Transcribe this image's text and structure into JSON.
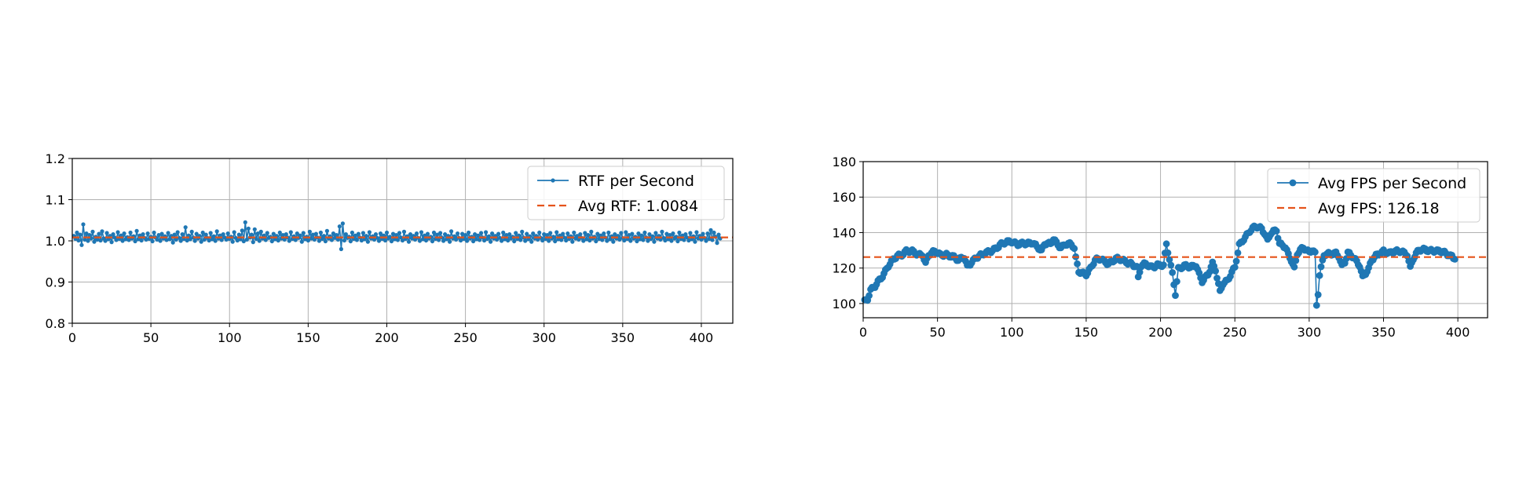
{
  "chart_data": [
    {
      "type": "line",
      "title": "",
      "xlabel": "",
      "ylabel": "",
      "xlim": [
        0,
        420
      ],
      "ylim": [
        0.8,
        1.2
      ],
      "xticks": [
        0,
        50,
        100,
        150,
        200,
        250,
        300,
        350,
        400
      ],
      "yticks": [
        0.8,
        0.9,
        1.0,
        1.1,
        1.2
      ],
      "ytick_format": "1",
      "grid": true,
      "legend_position": "upper right",
      "series": [
        {
          "name": "RTF per Second",
          "kind": "line-marker",
          "color": "#1f77b4",
          "marker_size": "small",
          "noise_note": "399 points oscillating 0.98-1.04 around 1.008",
          "x_start": 1,
          "x_end": 399,
          "values": [
            1.012,
            1.005,
            1.02,
            1.001,
            1.015,
            0.99,
            1.04,
            1.003,
            1.018,
            1.0,
            1.014,
            1.006,
            1.022,
            0.998,
            1.01,
            1.003,
            1.017,
            1.001,
            1.023,
            1.006,
            1.0,
            1.019,
            1.004,
            1.012,
            0.997,
            1.016,
            1.008,
            1.002,
            1.021,
            1.005,
            1.013,
            1.0,
            1.018,
            1.004,
            1.009,
            1.002,
            1.02,
            1.006,
            1.011,
            0.999,
            1.024,
            1.004,
            1.013,
            1.001,
            1.016,
            1.007,
            1.003,
            1.018,
            1.005,
            1.01,
            0.999,
            1.02,
            1.008,
            1.003,
            1.014,
            1.0,
            1.017,
            1.006,
            1.011,
            1.002,
            1.019,
            1.004,
            1.012,
            0.996,
            1.015,
            1.003,
            1.021,
            1.007,
            1.0,
            1.016,
            1.005,
            1.033,
            1.001,
            1.013,
            1.004,
            1.022,
            1.008,
            1.0,
            1.017,
            1.006,
            1.012,
            0.998,
            1.02,
            1.003,
            1.015,
            1.007,
            1.001,
            1.019,
            1.004,
            1.011,
            1.0,
            1.023,
            1.006,
            1.013,
            1.002,
            1.016,
            1.008,
            1.003,
            1.018,
            1.005,
            1.01,
            0.998,
            1.021,
            1.007,
            1.001,
            1.015,
            1.004,
            1.025,
            0.999,
            1.045,
            1.003,
            1.03,
            1.008,
            1.015,
            0.997,
            1.028,
            1.005,
            1.018,
            1.0,
            1.022,
            1.006,
            1.013,
            1.002,
            1.019,
            1.007,
            1.01,
            0.999,
            1.017,
            1.004,
            1.012,
            1.001,
            1.02,
            1.006,
            1.014,
            1.003,
            1.016,
            1.008,
            1.0,
            1.021,
            1.005,
            1.011,
            1.002,
            1.018,
            1.007,
            1.013,
            0.998,
            1.019,
            1.004,
            1.01,
            1.001,
            1.022,
            1.006,
            1.015,
            1.003,
            1.017,
            1.008,
            1.0,
            1.02,
            1.005,
            1.012,
            0.999,
            1.024,
            1.006,
            1.011,
            1.002,
            1.018,
            1.007,
            1.014,
            1.003,
            1.035,
            0.98,
            1.042,
            1.001,
            1.016,
            1.007,
            1.01,
            0.999,
            1.02,
            1.005,
            1.013,
            1.002,
            1.017,
            1.008,
            1.001,
            1.019,
            1.004,
            1.012,
            0.998,
            1.021,
            1.006,
            1.011,
            1.003,
            1.016,
            1.007,
            1.0,
            1.018,
            1.005,
            1.013,
            1.001,
            1.02,
            1.006,
            1.01,
            0.999,
            1.017,
            1.004,
            1.014,
            1.002,
            1.019,
            1.008,
            1.001,
            1.022,
            1.005,
            1.011,
            0.998,
            1.016,
            1.006,
            1.012,
            1.003,
            1.018,
            1.007,
            1.0,
            1.021,
            1.004,
            1.013,
            1.001,
            1.017,
            1.006,
            1.01,
            0.999,
            1.02,
            1.005,
            1.015,
            1.002,
            1.019,
            1.008,
            1.0,
            1.016,
            1.004,
            1.012,
            0.998,
            1.023,
            1.006,
            1.011,
            1.003,
            1.018,
            1.007,
            1.001,
            1.017,
            1.005,
            1.014,
            1.0,
            1.02,
            1.006,
            1.01,
            0.999,
            1.016,
            1.004,
            1.013,
            1.002,
            1.019,
            1.008,
            1.001,
            1.021,
            1.005,
            1.011,
            0.998,
            1.018,
            1.006,
            1.012,
            1.003,
            1.017,
            1.007,
            1.0,
            1.02,
            1.004,
            1.014,
            1.001,
            1.016,
            1.006,
            1.01,
            0.999,
            1.019,
            1.005,
            1.013,
            1.002,
            1.022,
            1.008,
            1.0,
            1.017,
            1.004,
            1.011,
            0.998,
            1.018,
            1.006,
            1.012,
            1.003,
            1.02,
            1.007,
            1.001,
            1.016,
            1.005,
            1.014,
            1.0,
            1.019,
            1.006,
            1.01,
            0.999,
            1.021,
            1.004,
            1.013,
            1.002,
            1.017,
            1.008,
            1.001,
            1.018,
            1.005,
            1.011,
            0.998,
            1.02,
            1.006,
            1.012,
            1.003,
            1.016,
            1.007,
            1.0,
            1.019,
            1.004,
            1.014,
            1.001,
            1.022,
            1.006,
            1.01,
            0.999,
            1.017,
            1.005,
            1.013,
            1.002,
            1.018,
            1.008,
            1.0,
            1.02,
            1.004,
            1.011,
            0.998,
            1.016,
            1.006,
            1.012,
            1.003,
            1.019,
            1.007,
            1.001,
            1.021,
            1.005,
            1.014,
            1.0,
            1.017,
            1.006,
            1.01,
            0.999,
            1.018,
            1.004,
            1.013,
            1.002,
            1.02,
            1.008,
            1.0,
            1.016,
            1.005,
            1.011,
            0.998,
            1.019,
            1.006,
            1.012,
            1.003,
            1.022,
            1.007,
            1.001,
            1.017,
            1.004,
            1.014,
            1.0,
            1.018,
            1.006,
            1.01,
            0.999,
            1.02,
            1.005,
            1.013,
            1.002,
            1.016,
            1.008,
            1.001,
            1.019,
            1.004,
            1.011,
            0.998,
            1.021,
            1.006,
            1.012,
            1.003,
            1.017,
            1.007,
            1.0,
            1.018,
            1.005,
            1.026,
            1.002,
            1.02,
            1.01,
            0.995,
            1.015,
            1.006
          ]
        },
        {
          "name": "Avg RTF: 1.0084",
          "kind": "hline",
          "color": "#e5531a",
          "y": 1.0084
        }
      ]
    },
    {
      "type": "line",
      "title": "",
      "xlabel": "",
      "ylabel": "",
      "xlim": [
        0,
        420
      ],
      "ylim": [
        92,
        180
      ],
      "xticks": [
        0,
        50,
        100,
        150,
        200,
        250,
        300,
        350,
        400
      ],
      "yticks": [
        100,
        120,
        140,
        160,
        180
      ],
      "ytick_format": "0",
      "grid": true,
      "legend_position": "upper right",
      "series": [
        {
          "name": "Avg FPS per Second",
          "kind": "line-marker",
          "color": "#1f77b4",
          "marker_size": "large",
          "x_start": 1,
          "x_end": 399,
          "anchors": [
            [
              1,
              101
            ],
            [
              3,
              102
            ],
            [
              5,
              107
            ],
            [
              8,
              110
            ],
            [
              11,
              114
            ],
            [
              14,
              117
            ],
            [
              17,
              121
            ],
            [
              20,
              124
            ],
            [
              23,
              127
            ],
            [
              26,
              128
            ],
            [
              29,
              130
            ],
            [
              33,
              129
            ],
            [
              37,
              127
            ],
            [
              40,
              128
            ],
            [
              42,
              123
            ],
            [
              44,
              128
            ],
            [
              48,
              129
            ],
            [
              52,
              127
            ],
            [
              56,
              128
            ],
            [
              60,
              127
            ],
            [
              64,
              124
            ],
            [
              68,
              126
            ],
            [
              70,
              121
            ],
            [
              73,
              124
            ],
            [
              76,
              126
            ],
            [
              80,
              127
            ],
            [
              84,
              129
            ],
            [
              88,
              131
            ],
            [
              92,
              133
            ],
            [
              96,
              134
            ],
            [
              100,
              135
            ],
            [
              104,
              134
            ],
            [
              108,
              134
            ],
            [
              110,
              133
            ],
            [
              114,
              134
            ],
            [
              118,
              132
            ],
            [
              120,
              130
            ],
            [
              122,
              134
            ],
            [
              126,
              133
            ],
            [
              128,
              136
            ],
            [
              130,
              134
            ],
            [
              133,
              132
            ],
            [
              136,
              134
            ],
            [
              140,
              133
            ],
            [
              142,
              131
            ],
            [
              143,
              125
            ],
            [
              145,
              118
            ],
            [
              150,
              117
            ],
            [
              153,
              120
            ],
            [
              156,
              124
            ],
            [
              160,
              125
            ],
            [
              165,
              123
            ],
            [
              170,
              125
            ],
            [
              175,
              124
            ],
            [
              180,
              123
            ],
            [
              184,
              121
            ],
            [
              185,
              114
            ],
            [
              187,
              121
            ],
            [
              190,
              122
            ],
            [
              194,
              121
            ],
            [
              198,
              122
            ],
            [
              202,
              121
            ],
            [
              204,
              133
            ],
            [
              206,
              125
            ],
            [
              208,
              117
            ],
            [
              210,
              106
            ],
            [
              212,
              120
            ],
            [
              216,
              121
            ],
            [
              220,
              120
            ],
            [
              224,
              122
            ],
            [
              226,
              117
            ],
            [
              228,
              113
            ],
            [
              232,
              116
            ],
            [
              235,
              122
            ],
            [
              237,
              119
            ],
            [
              240,
              107
            ],
            [
              242,
              112
            ],
            [
              245,
              113
            ],
            [
              248,
              117
            ],
            [
              250,
              120
            ],
            [
              253,
              133
            ],
            [
              256,
              137
            ],
            [
              260,
              141
            ],
            [
              264,
              143
            ],
            [
              268,
              142
            ],
            [
              270,
              140
            ],
            [
              272,
              136
            ],
            [
              274,
              140
            ],
            [
              278,
              141
            ],
            [
              280,
              133
            ],
            [
              284,
              132
            ],
            [
              286,
              128
            ],
            [
              288,
              125
            ],
            [
              290,
              120
            ],
            [
              292,
              128
            ],
            [
              296,
              131
            ],
            [
              300,
              129
            ],
            [
              302,
              131
            ],
            [
              304,
              129
            ],
            [
              305,
              99
            ],
            [
              306,
              105
            ],
            [
              307,
              116
            ],
            [
              310,
              127
            ],
            [
              314,
              128
            ],
            [
              318,
              129
            ],
            [
              320,
              127
            ],
            [
              322,
              121
            ],
            [
              324,
              123
            ],
            [
              326,
              128
            ],
            [
              330,
              126
            ],
            [
              334,
              122
            ],
            [
              336,
              115
            ],
            [
              338,
              117
            ],
            [
              340,
              119
            ],
            [
              342,
              124
            ],
            [
              346,
              128
            ],
            [
              350,
              130
            ],
            [
              354,
              128
            ],
            [
              358,
              129
            ],
            [
              362,
              130
            ],
            [
              366,
              128
            ],
            [
              368,
              120
            ],
            [
              370,
              125
            ],
            [
              374,
              130
            ],
            [
              378,
              131
            ],
            [
              382,
              130
            ],
            [
              386,
              129
            ],
            [
              390,
              129
            ],
            [
              394,
              128
            ],
            [
              396,
              127
            ],
            [
              398,
              125
            ]
          ]
        },
        {
          "name": "Avg FPS: 126.18",
          "kind": "hline",
          "color": "#e5531a",
          "y": 126.18
        }
      ]
    }
  ]
}
